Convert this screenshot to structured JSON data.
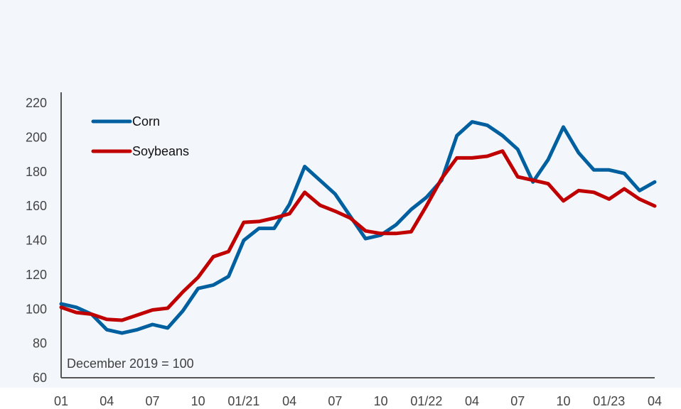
{
  "chart_data": {
    "type": "line",
    "title": "",
    "xlabel": "",
    "ylabel": "",
    "note": "December 2019 = 100",
    "ylim": [
      60,
      220
    ],
    "yticks": [
      60,
      80,
      100,
      120,
      140,
      160,
      180,
      200,
      220
    ],
    "x": [
      "2020-01",
      "2020-02",
      "2020-03",
      "2020-04",
      "2020-05",
      "2020-06",
      "2020-07",
      "2020-08",
      "2020-09",
      "2020-10",
      "2020-11",
      "2020-12",
      "2021-01",
      "2021-02",
      "2021-03",
      "2021-04",
      "2021-05",
      "2021-06",
      "2021-07",
      "2021-08",
      "2021-09",
      "2021-10",
      "2021-11",
      "2021-12",
      "2022-01",
      "2022-02",
      "2022-03",
      "2022-04",
      "2022-05",
      "2022-06",
      "2022-07",
      "2022-08",
      "2022-09",
      "2022-10",
      "2022-11",
      "2022-12",
      "2023-01",
      "2023-02",
      "2023-03",
      "2023-04"
    ],
    "xtick_labels": [
      "01",
      "04",
      "07",
      "10",
      "01/21",
      "04",
      "07",
      "10",
      "01/22",
      "04",
      "07",
      "10",
      "01/23",
      "04"
    ],
    "xtick_positions": [
      "2020-01",
      "2020-04",
      "2020-07",
      "2020-10",
      "2021-01",
      "2021-04",
      "2021-07",
      "2021-10",
      "2022-01",
      "2022-04",
      "2022-07",
      "2022-10",
      "2023-01",
      "2023-04"
    ],
    "grid": false,
    "legend_position": "top-left",
    "series": [
      {
        "name": "Corn",
        "color": "#00609f",
        "values": [
          103,
          101,
          97,
          88,
          86,
          88,
          91,
          89,
          99,
          112,
          114,
          119,
          140,
          147,
          147,
          161,
          183,
          175,
          167,
          154,
          141,
          143,
          149,
          158,
          165,
          175,
          201,
          209,
          207,
          201,
          193,
          174,
          187,
          206,
          191,
          181,
          181,
          179,
          169,
          174
        ]
      },
      {
        "name": "Soybeans",
        "color": "#c00000",
        "values": [
          101,
          98,
          97,
          94,
          93.5,
          96.5,
          99.5,
          100.5,
          110,
          118.5,
          130.5,
          133.5,
          150.5,
          151,
          153,
          155.5,
          168,
          160.5,
          157,
          153,
          145.5,
          144,
          144,
          145,
          160,
          176,
          188,
          188,
          189,
          192,
          177,
          175,
          173,
          163,
          169,
          168,
          164,
          170,
          164,
          160
        ]
      }
    ]
  }
}
